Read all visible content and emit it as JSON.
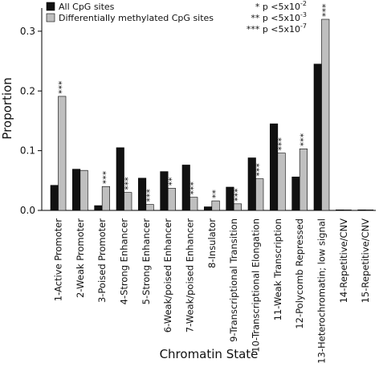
{
  "chart_data": {
    "type": "bar",
    "title": "",
    "xlabel": "Chromatin State",
    "ylabel": "Proportion",
    "ylim": [
      0,
      0.32
    ],
    "yticks": [
      "0.0",
      "0.1",
      "0.2",
      "0.3"
    ],
    "grid": false,
    "legend_position": "top-left",
    "categories": [
      "1-Active Promoter",
      "2-Weak Promoter",
      "3-Poised Promoter",
      "4-Strong Enhancer",
      "5-Strong Enhancer",
      "6-Weak/poised Enhancer",
      "7-Weak/poised Enhancer",
      "8-Insulator",
      "9-Transcriptional Transition",
      "10-Transcriptional Elongation",
      "11-Weak Transcription",
      "12-Polycomb Repressed",
      "13-Heterochromatin; low signal",
      "14-Repetitive/CNV",
      "15-Repetitive/CNV"
    ],
    "series": [
      {
        "name": "All CpG sites",
        "color": "#111111",
        "values": [
          0.042,
          0.069,
          0.008,
          0.105,
          0.054,
          0.065,
          0.076,
          0.006,
          0.039,
          0.088,
          0.145,
          0.056,
          0.245,
          0.001,
          0.001
        ]
      },
      {
        "name": "Differentially methylated CpG sites",
        "color": "#bfbfbf",
        "values": [
          0.191,
          0.067,
          0.04,
          0.03,
          0.01,
          0.037,
          0.022,
          0.016,
          0.011,
          0.053,
          0.096,
          0.103,
          0.32,
          0.001,
          0.001
        ]
      }
    ],
    "significance_labels": [
      "***",
      "",
      "***",
      "***",
      "***",
      "**",
      "***",
      "**",
      "***",
      "***",
      "***",
      "***",
      "***",
      "",
      ""
    ],
    "significance_key": [
      {
        "stars": "*",
        "text": "p <5x10",
        "exp": "-2"
      },
      {
        "stars": "**",
        "text": "p <5x10",
        "exp": "-3"
      },
      {
        "stars": "***",
        "text": "p <5x10",
        "exp": "-7"
      }
    ]
  }
}
